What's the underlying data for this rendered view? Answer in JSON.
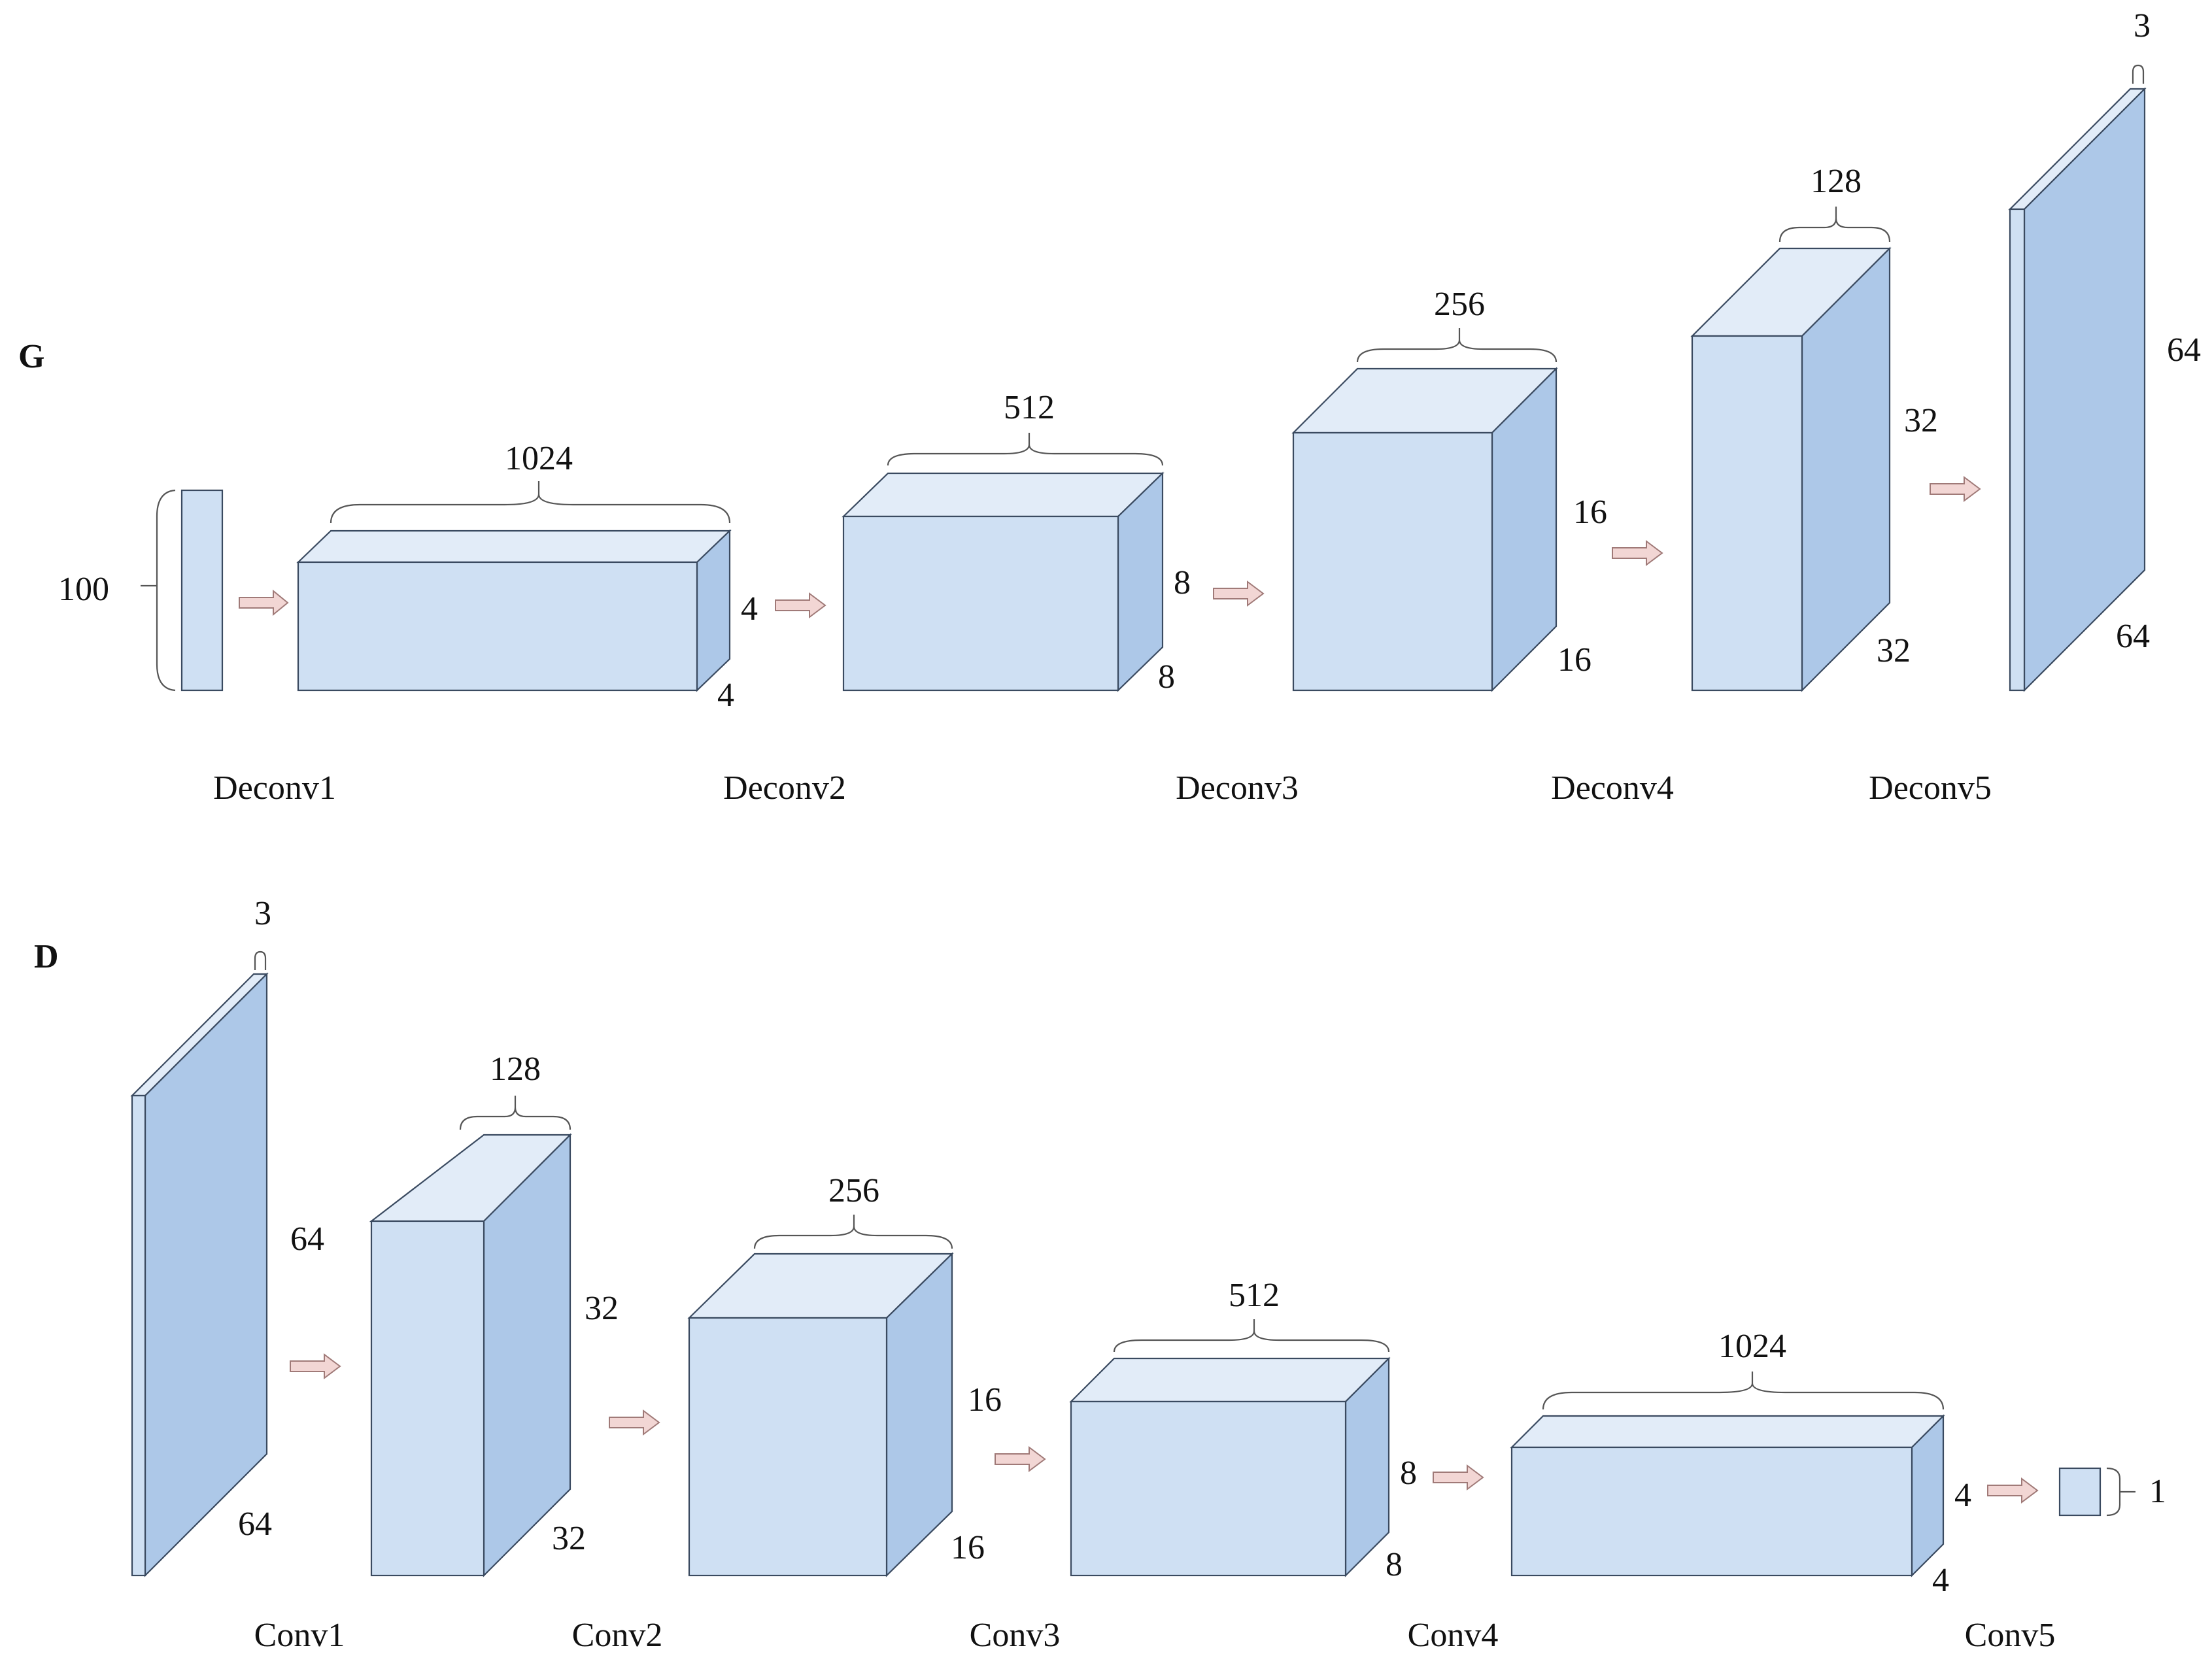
{
  "sections": {
    "generator": "G",
    "discriminator": "D"
  },
  "generator": {
    "input": {
      "size": "100"
    },
    "layers": [
      {
        "name": "Deconv1",
        "channels": "1024",
        "height": "4",
        "width": "4"
      },
      {
        "name": "Deconv2",
        "channels": "512",
        "height": "8",
        "width": "8"
      },
      {
        "name": "Deconv3",
        "channels": "256",
        "height": "16",
        "width": "16"
      },
      {
        "name": "Deconv4",
        "channels": "128",
        "height": "32",
        "width": "32"
      },
      {
        "name": "Deconv5",
        "channels": "3",
        "height": "64",
        "width": "64"
      }
    ]
  },
  "discriminator": {
    "layers": [
      {
        "name": "Conv1",
        "channels": "3",
        "height": "64",
        "width": "64"
      },
      {
        "name": "Conv2",
        "channels": "128",
        "height": "32",
        "width": "32"
      },
      {
        "name": "Conv3",
        "channels": "256",
        "height": "16",
        "width": "16"
      },
      {
        "name": "Conv4",
        "channels": "512",
        "height": "8",
        "width": "8"
      },
      {
        "name": "Conv5",
        "channels": "1024",
        "height": "4",
        "width": "4"
      }
    ],
    "output": {
      "size": "1"
    }
  },
  "colors": {
    "front": "#cfe0f3",
    "top": "#e2ecf8",
    "side": "#adc8e8",
    "arrow": "#f2d6d4"
  }
}
